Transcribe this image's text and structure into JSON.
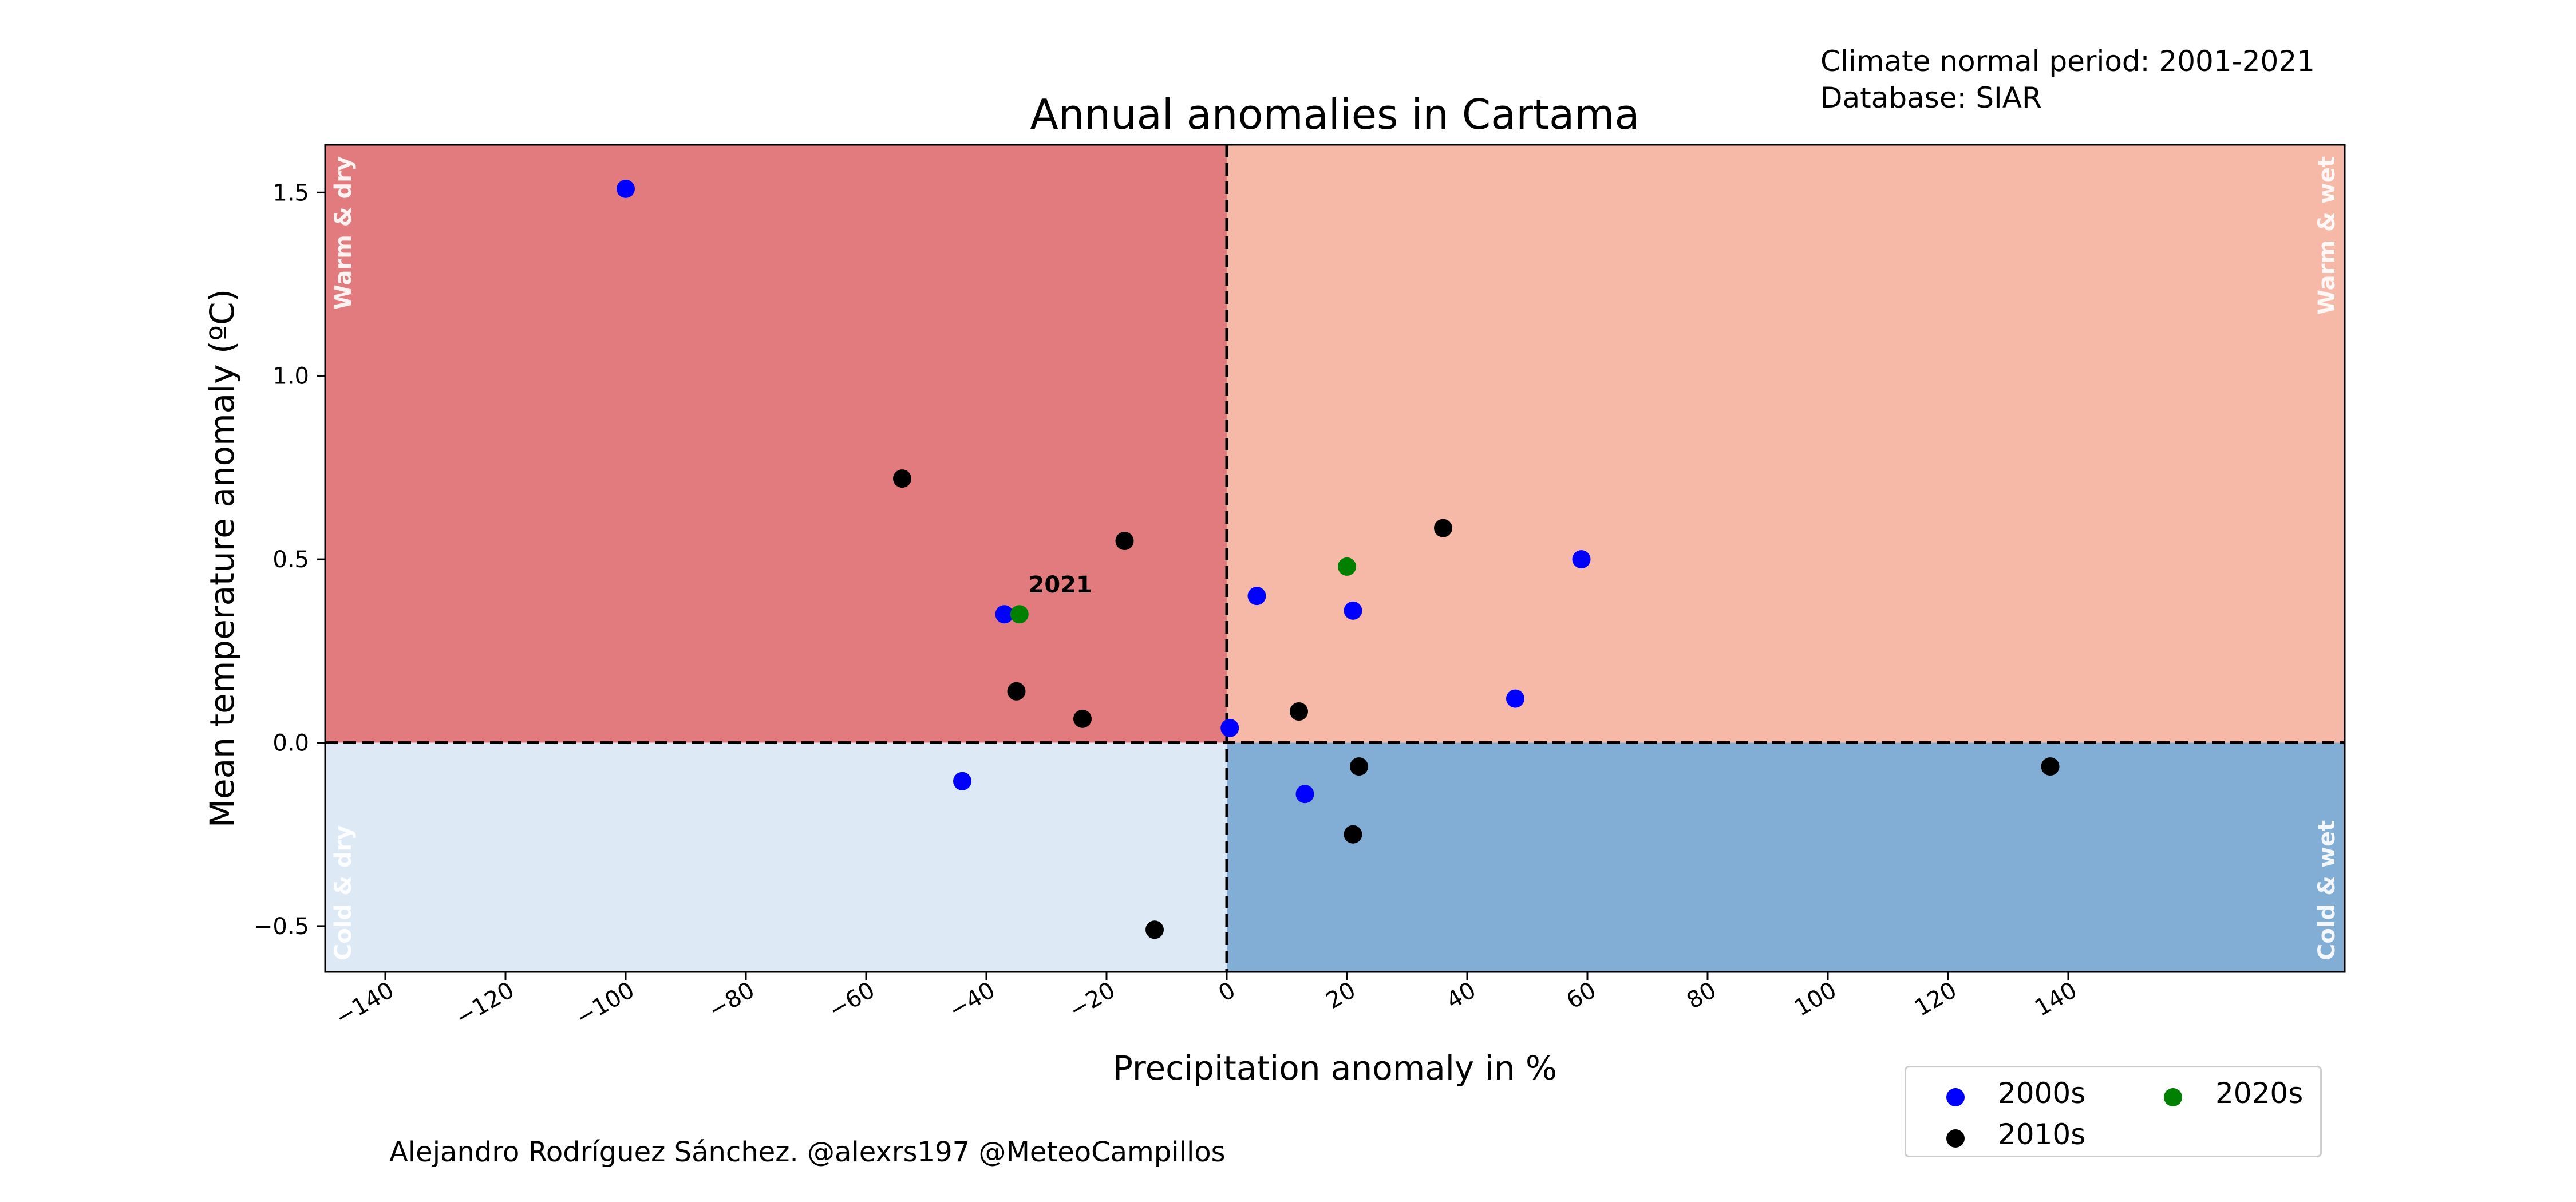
{
  "info_lines": [
    "Climate normal period: 2001-2021",
    "Database: SIAR"
  ],
  "credit": "Alejandro Rodríguez Sánchez. @alexrs197 @MeteoCampillos",
  "chart_data": {
    "type": "scatter",
    "title": "Annual anomalies in Cartama",
    "xlabel": "Precipitation anomaly in %",
    "ylabel": "Mean temperature anomaly (ºC)",
    "xlim": [
      -150,
      186
    ],
    "ylim": [
      -0.625,
      1.63
    ],
    "xticks": [
      -140,
      -120,
      -100,
      -80,
      -60,
      -40,
      -20,
      0,
      20,
      40,
      60,
      80,
      100,
      120,
      140
    ],
    "yticks": [
      -0.5,
      0.0,
      0.5,
      1.0,
      1.5
    ],
    "xtick_labels": [
      "−140",
      "−120",
      "−100",
      "−80",
      "−60",
      "−40",
      "−20",
      "0",
      "20",
      "40",
      "60",
      "80",
      "100",
      "120",
      "140"
    ],
    "ytick_labels": [
      "−0.5",
      "0.0",
      "0.5",
      "1.0",
      "1.5"
    ],
    "grid": false,
    "quadrants": [
      {
        "label": "Warm & dry",
        "color": "#e27b7d"
      },
      {
        "label": "Warm & wet",
        "color": "#f7b9a7"
      },
      {
        "label": "Cold & dry",
        "color": "#dde9f5"
      },
      {
        "label": "Cold & wet",
        "color": "#82aed5"
      }
    ],
    "reference_lines": {
      "x": 0,
      "y": 0,
      "style": "dashed"
    },
    "series": [
      {
        "name": "2000s",
        "color": "#0000ff",
        "points": [
          [
            -100,
            1.51
          ],
          [
            -37,
            0.35
          ],
          [
            5,
            0.4
          ],
          [
            21,
            0.36
          ],
          [
            59,
            0.5
          ],
          [
            48,
            0.12
          ],
          [
            0.5,
            0.04
          ],
          [
            -44,
            -0.105
          ],
          [
            13,
            -0.14
          ]
        ]
      },
      {
        "name": "2010s",
        "color": "#000000",
        "points": [
          [
            -54,
            0.72
          ],
          [
            -17,
            0.55
          ],
          [
            -35,
            0.14
          ],
          [
            -24,
            0.065
          ],
          [
            36,
            0.585
          ],
          [
            12,
            0.085
          ],
          [
            22,
            -0.065
          ],
          [
            21,
            -0.25
          ],
          [
            137,
            -0.065
          ],
          [
            -12,
            -0.51
          ]
        ]
      },
      {
        "name": "2020s",
        "color": "#008000",
        "points": [
          [
            -34.5,
            0.35
          ],
          [
            20,
            0.48
          ]
        ]
      }
    ],
    "annotations": [
      {
        "text": "2021",
        "x": -33,
        "y": 0.41
      }
    ],
    "legend_placement": "bottom-right, below plot",
    "legend_order": [
      "2000s",
      "2020s",
      "2010s"
    ]
  }
}
